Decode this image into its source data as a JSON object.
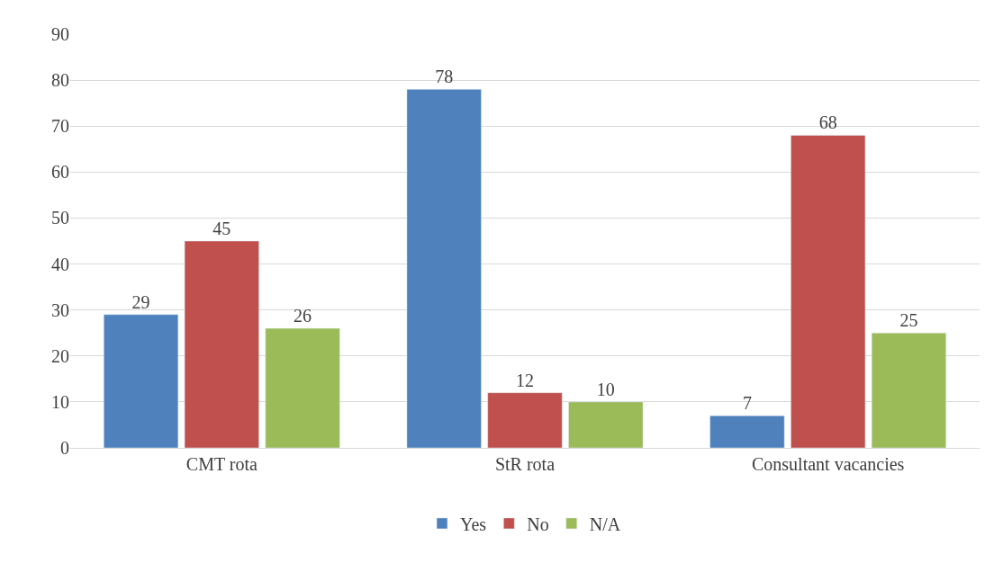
{
  "chart_data": {
    "type": "bar",
    "categories": [
      "CMT rota",
      "StR rota",
      "Consultant vacancies"
    ],
    "series": [
      {
        "name": "Yes",
        "color": "#4f81bd",
        "values": [
          29,
          78,
          7
        ]
      },
      {
        "name": "No",
        "color": "#c0504d",
        "values": [
          45,
          12,
          68
        ]
      },
      {
        "name": "N/A",
        "color": "#9bbb59",
        "values": [
          26,
          10,
          25
        ]
      }
    ],
    "ylim": [
      0,
      90
    ],
    "yticks": [
      0,
      10,
      20,
      30,
      40,
      50,
      60,
      70,
      80,
      90
    ],
    "grid": "y",
    "legend": "bottom",
    "data_labels": true
  }
}
